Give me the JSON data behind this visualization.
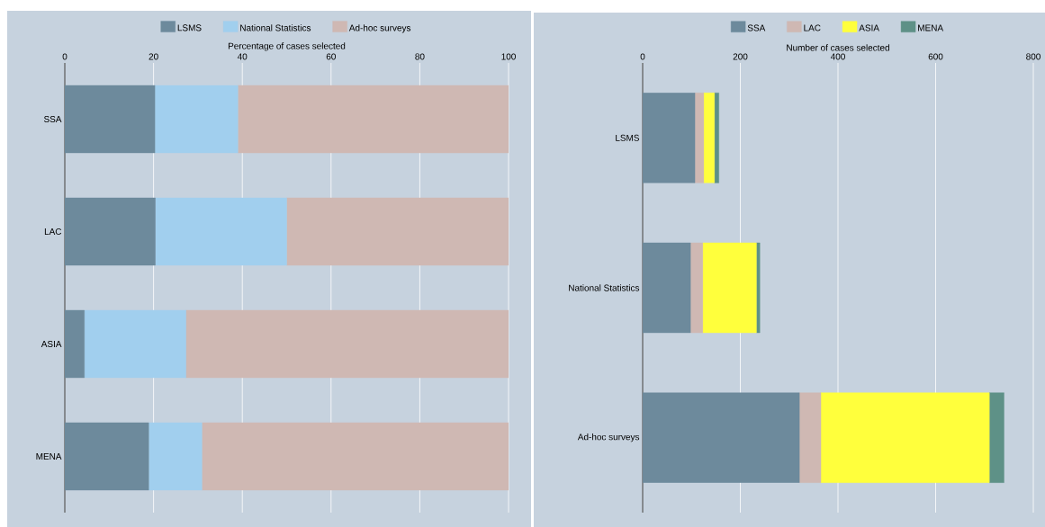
{
  "chart_data": [
    {
      "type": "bar",
      "orientation": "horizontal",
      "stacked": true,
      "xlabel": "Percentage of cases selected",
      "categories": [
        "SSA",
        "LAC",
        "ASIA",
        "MENA"
      ],
      "xlim": [
        0,
        100
      ],
      "xticks": [
        0,
        20,
        40,
        60,
        80,
        100
      ],
      "grid": "x",
      "legend": "top",
      "series": [
        {
          "name": "LSMS",
          "color": "#6d8a9c",
          "values": [
            20.3,
            20.4,
            4.4,
            18.9
          ]
        },
        {
          "name": "National Statistics",
          "color": "#a1cfee",
          "values": [
            18.7,
            29.6,
            22.9,
            12.0
          ]
        },
        {
          "name": "Ad-hoc surveys",
          "color": "#cfb8b3",
          "values": [
            61.0,
            50.0,
            72.7,
            69.1
          ]
        }
      ]
    },
    {
      "type": "bar",
      "orientation": "horizontal",
      "stacked": true,
      "xlabel": "Number of cases selected",
      "categories": [
        "LSMS",
        "National Statistics",
        "Ad-hoc surveys"
      ],
      "xlim": [
        0,
        800
      ],
      "xticks": [
        0,
        200,
        400,
        600,
        800
      ],
      "grid": "x",
      "legend": "top",
      "series": [
        {
          "name": "SSA",
          "color": "#6d8a9c",
          "values": [
            107,
            98,
            321
          ]
        },
        {
          "name": "LAC",
          "color": "#cfb8b3",
          "values": [
            18,
            25,
            44
          ]
        },
        {
          "name": "ASIA",
          "color": "#ffff3c",
          "values": [
            22,
            110,
            345
          ]
        },
        {
          "name": "MENA",
          "color": "#5e9187",
          "values": [
            9,
            7,
            30
          ]
        }
      ]
    }
  ]
}
